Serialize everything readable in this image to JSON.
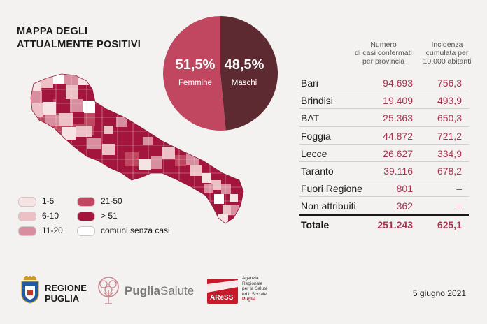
{
  "title": {
    "line1": "MAPPA DEGLI",
    "line2": "ATTUALMENTE POSITIVI"
  },
  "pie": {
    "slices": [
      {
        "pct": "51,5%",
        "label": "Femmine",
        "value": 51.5,
        "color": "#c0475f"
      },
      {
        "pct": "48,5%",
        "label": "Maschi",
        "value": 48.5,
        "color": "#5c2a30"
      }
    ]
  },
  "legend": {
    "items": [
      {
        "label": "1-5",
        "color": "#f6e4e4"
      },
      {
        "label": "6-10",
        "color": "#edc0c6"
      },
      {
        "label": "11-20",
        "color": "#d98ea0"
      },
      {
        "label": "21-50",
        "color": "#c0475f"
      },
      {
        "label": "> 51",
        "color": "#a3153c"
      },
      {
        "label": "comuni senza casi",
        "color": "#ffffff"
      }
    ]
  },
  "table": {
    "header1": [
      "Numero",
      "di casi confermati",
      "per provincia"
    ],
    "header2": [
      "Incidenza",
      "cumulata per",
      "10.000 abitanti"
    ],
    "rows": [
      {
        "name": "Bari",
        "cases": "94.693",
        "inc": "756,3"
      },
      {
        "name": "Brindisi",
        "cases": "19.409",
        "inc": "493,9"
      },
      {
        "name": "BAT",
        "cases": "25.363",
        "inc": "650,3"
      },
      {
        "name": "Foggia",
        "cases": "44.872",
        "inc": "721,2"
      },
      {
        "name": "Lecce",
        "cases": "26.627",
        "inc": "334,9"
      },
      {
        "name": "Taranto",
        "cases": "39.116",
        "inc": "678,2"
      },
      {
        "name": "Fuori Regione",
        "cases": "801",
        "inc": "–"
      },
      {
        "name": "Non attribuiti",
        "cases": "362",
        "inc": "–"
      }
    ],
    "total": {
      "name": "Totale",
      "cases": "251.243",
      "inc": "625,1"
    }
  },
  "logos": {
    "regione": {
      "l1": "REGIONE",
      "l2": "PUGLIA"
    },
    "puglia_salute": {
      "a": "Puglia",
      "b": "Salute"
    },
    "aress": {
      "mark": "AReSS",
      "l1": "Agenzia",
      "l2": "Regionale",
      "l3": "per la Salute",
      "l4": "ed il Sociale",
      "l5": "Puglia"
    }
  },
  "date": "5 giugno 2021",
  "colors": {
    "accent": "#a8334f",
    "dark": "#a3153c"
  }
}
